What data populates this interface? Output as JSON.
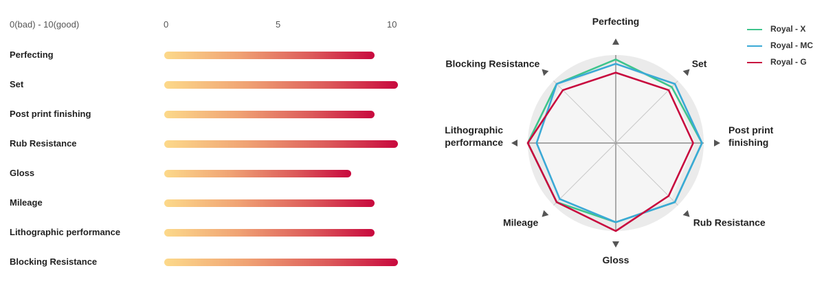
{
  "bar_chart": {
    "range_label": "0(bad) - 10(good)",
    "scale_ticks": [
      "0",
      "5",
      "10"
    ],
    "xlim": [
      0,
      10
    ],
    "gradient_colors": [
      "#fcd98a",
      "#f0a374",
      "#dc5a5a",
      "#c8093e"
    ]
  },
  "radar_chart": {
    "legend": [
      {
        "label": "Royal - X",
        "color": "#3ec48c"
      },
      {
        "label": "Royal - MC",
        "color": "#3aa9d6"
      },
      {
        "label": "Royal - G",
        "color": "#c8093e"
      }
    ]
  },
  "chart_data": [
    {
      "type": "bar",
      "title": "0(bad) - 10(good)",
      "xlim": [
        0,
        10
      ],
      "categories": [
        "Perfecting",
        "Set",
        "Post print finishing",
        "Rub Resistance",
        "Gloss",
        "Mileage",
        "Lithographic performance",
        "Blocking Resistance"
      ],
      "values": [
        9,
        10,
        9,
        10,
        8,
        9,
        9,
        10
      ]
    },
    {
      "type": "radar",
      "axes": [
        "Perfecting",
        "Set",
        "Post print finishing",
        "Rub Resistance",
        "Gloss",
        "Mileage",
        "Lithographic performance",
        "Blocking Resistance"
      ],
      "axis_labels": [
        [
          "Perfecting"
        ],
        [
          "Set"
        ],
        [
          "Post print",
          "finishing"
        ],
        [
          "Rub Resistance"
        ],
        [
          "Gloss"
        ],
        [
          "Mileage"
        ],
        [
          "Lithographic",
          "performance"
        ],
        [
          "Blocking Resistance"
        ]
      ],
      "rlim": [
        0,
        10
      ],
      "series": [
        {
          "name": "Royal - X",
          "color": "#3ec48c",
          "values": [
            9.5,
            9.0,
            9.8,
            9.5,
            9.0,
            9.5,
            10.0,
            9.5
          ]
        },
        {
          "name": "Royal - MC",
          "color": "#3aa9d6",
          "values": [
            9.0,
            9.5,
            9.8,
            9.5,
            9.0,
            9.0,
            9.0,
            9.5
          ]
        },
        {
          "name": "Royal - G",
          "color": "#c8093e",
          "values": [
            8.0,
            8.5,
            8.8,
            8.5,
            10.0,
            9.5,
            10.0,
            8.5
          ]
        }
      ]
    }
  ]
}
